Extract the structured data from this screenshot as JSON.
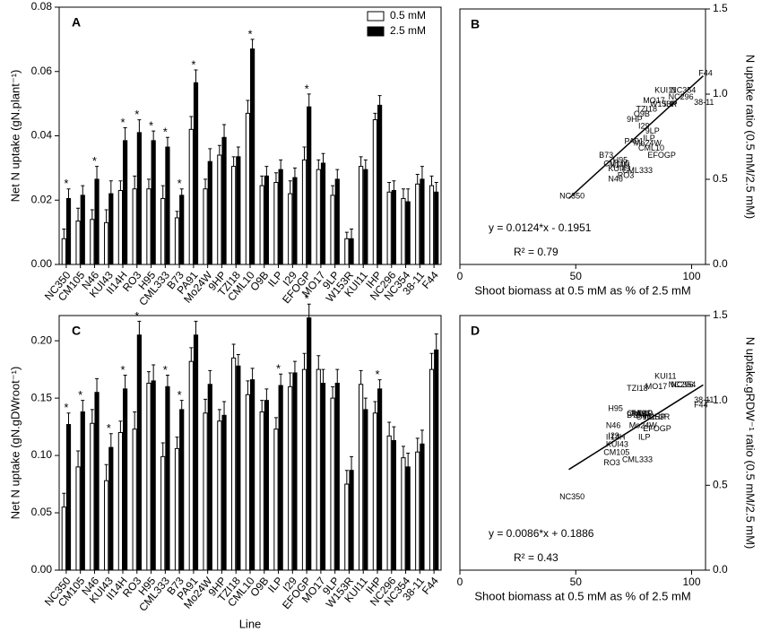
{
  "chart_data": [
    {
      "type": "bar",
      "panel_label": "A",
      "ylabel": "Net N uptake (gN.plant⁻¹)",
      "categories": [
        "NC350",
        "CM105",
        "N46",
        "KUI43",
        "II14H",
        "RO3",
        "H95",
        "CML333",
        "B73",
        "PA91",
        "Mo24W",
        "9HP",
        "TZI18",
        "CML10",
        "O9B",
        "ILP",
        "I29",
        "EFOGP",
        "MO17",
        "9LP",
        "W153R",
        "KUI11",
        "IHP",
        "NC296",
        "NC354",
        "38-11",
        "F44"
      ],
      "series": [
        {
          "name": "0.5 mM",
          "color": "#ffffff",
          "values": [
            0.008,
            0.0135,
            0.014,
            0.013,
            0.023,
            0.0235,
            0.0235,
            0.0205,
            0.0145,
            0.042,
            0.0235,
            0.034,
            0.0305,
            0.047,
            0.0245,
            0.0255,
            0.022,
            0.0325,
            0.0295,
            0.0215,
            0.008,
            0.0305,
            0.045,
            0.0225,
            0.0205,
            0.025,
            0.0245
          ],
          "errors": [
            0.003,
            0.004,
            0.003,
            0.004,
            0.003,
            0.004,
            0.003,
            0.004,
            0.002,
            0.004,
            0.003,
            0.003,
            0.003,
            0.004,
            0.003,
            0.003,
            0.004,
            0.004,
            0.003,
            0.003,
            0.002,
            0.003,
            0.002,
            0.003,
            0.003,
            0.003,
            0.003
          ]
        },
        {
          "name": "2.5 mM",
          "color": "#000000",
          "values": [
            0.0205,
            0.0215,
            0.0265,
            0.022,
            0.0385,
            0.041,
            0.0385,
            0.0365,
            0.0215,
            0.0565,
            0.032,
            0.0395,
            0.0335,
            0.067,
            0.0275,
            0.0295,
            0.027,
            0.049,
            0.0315,
            0.0265,
            0.008,
            0.0295,
            0.0495,
            0.023,
            0.0195,
            0.0265,
            0.0225
          ],
          "errors": [
            0.003,
            0.003,
            0.004,
            0.004,
            0.004,
            0.004,
            0.003,
            0.003,
            0.002,
            0.004,
            0.004,
            0.004,
            0.003,
            0.003,
            0.003,
            0.003,
            0.003,
            0.004,
            0.003,
            0.003,
            0.003,
            0.003,
            0.003,
            0.003,
            0.004,
            0.004,
            0.003
          ]
        }
      ],
      "significance": [
        "*",
        null,
        "*",
        null,
        "*",
        "*",
        "*",
        "*",
        "*",
        "*",
        null,
        null,
        null,
        "*",
        null,
        null,
        null,
        "*",
        null,
        null,
        null,
        null,
        null,
        null,
        null,
        null,
        null
      ],
      "ylim": [
        0,
        0.08
      ],
      "yticks": [
        {
          "value": 0,
          "label": "0.00"
        },
        {
          "value": 0.02,
          "label": "0.02"
        },
        {
          "value": 0.04,
          "label": "0.04"
        },
        {
          "value": 0.06,
          "label": "0.06"
        },
        {
          "value": 0.08,
          "label": "0.08"
        }
      ],
      "legend": "upper right"
    },
    {
      "type": "scatter",
      "panel_label": "B",
      "ylabel": "N uptake ratio (0.5 mM/2.5 mM)",
      "xlabel": "Shoot biomass at 0.5 mM as % of 2.5 mM",
      "labels": [
        "NC350",
        "CM105",
        "N46",
        "KUI43",
        "II14H",
        "RO3",
        "H95",
        "CML333",
        "B73",
        "PA91",
        "Mo24W",
        "9HP",
        "TZI18",
        "CML10",
        "O9B",
        "ILP",
        "I29",
        "EFOGP",
        "MO17",
        "9LP",
        "W153R",
        "KUI11",
        "IHP",
        "NC296",
        "NC354",
        "38-11",
        "F44"
      ],
      "x": [
        43,
        62,
        64,
        64,
        65,
        68,
        66,
        70,
        60,
        71,
        75,
        72,
        76,
        77,
        75,
        79,
        77,
        81,
        79,
        80,
        82,
        84,
        88,
        90,
        91,
        101,
        103
      ],
      "y": [
        0.4,
        0.59,
        0.5,
        0.56,
        0.58,
        0.52,
        0.61,
        0.55,
        0.64,
        0.72,
        0.71,
        0.85,
        0.91,
        0.68,
        0.88,
        0.74,
        0.81,
        0.64,
        0.96,
        0.78,
        0.94,
        1.02,
        0.94,
        0.98,
        1.02,
        0.95,
        1.12
      ],
      "fit": {
        "slope": 0.0124,
        "intercept": -0.1951,
        "xrange": [
          47,
          105
        ]
      },
      "equation": "y = 0.0124*x - 0.1951",
      "r2": "R² = 0.79",
      "xlim": [
        0,
        106
      ],
      "xticks": [
        0,
        50,
        100
      ],
      "ylim": [
        0,
        1.5
      ],
      "yticks": [
        {
          "value": 0,
          "label": "0.0"
        },
        0.5,
        {
          "value": 1,
          "label": "1.0"
        },
        1.5
      ]
    },
    {
      "type": "bar",
      "panel_label": "C",
      "ylabel": "Net N uptake (gN.gDWroot⁻¹)",
      "xlabel": "Line",
      "categories": [
        "NC350",
        "CM105",
        "N46",
        "KUI43",
        "II14H",
        "RO3",
        "H95",
        "CML333",
        "B73",
        "PA91",
        "Mo24W",
        "9HP",
        "TZI18",
        "CML10",
        "O9B",
        "ILP",
        "I29",
        "EFOGP",
        "MO17",
        "9LP",
        "W153R",
        "KUI11",
        "IHP",
        "NC296",
        "NC354",
        "38-11",
        "F44"
      ],
      "series": [
        {
          "name": "0.5 mM",
          "color": "#ffffff",
          "values": [
            0.055,
            0.09,
            0.128,
            0.078,
            0.12,
            0.123,
            0.163,
            0.099,
            0.106,
            0.182,
            0.137,
            0.13,
            0.185,
            0.153,
            0.138,
            0.123,
            0.16,
            0.175,
            0.175,
            0.15,
            0.075,
            0.162,
            0.137,
            0.117,
            0.098,
            0.103,
            0.175
          ],
          "errors": [
            0.012,
            0.014,
            0.012,
            0.014,
            0.01,
            0.015,
            0.01,
            0.012,
            0.01,
            0.012,
            0.012,
            0.01,
            0.012,
            0.012,
            0.01,
            0.01,
            0.012,
            0.014,
            0.012,
            0.01,
            0.012,
            0.012,
            0.01,
            0.012,
            0.01,
            0.012,
            0.014
          ]
        },
        {
          "name": "2.5 mM",
          "color": "#000000",
          "values": [
            0.127,
            0.138,
            0.155,
            0.107,
            0.158,
            0.205,
            0.165,
            0.16,
            0.14,
            0.205,
            0.162,
            0.135,
            0.178,
            0.166,
            0.148,
            0.161,
            0.172,
            0.22,
            0.163,
            0.163,
            0.087,
            0.14,
            0.158,
            0.113,
            0.09,
            0.11,
            0.192
          ],
          "errors": [
            0.01,
            0.01,
            0.012,
            0.012,
            0.012,
            0.012,
            0.014,
            0.01,
            0.008,
            0.012,
            0.012,
            0.012,
            0.01,
            0.01,
            0.01,
            0.01,
            0.01,
            0.012,
            0.012,
            0.012,
            0.012,
            0.01,
            0.008,
            0.012,
            0.012,
            0.012,
            0.014
          ]
        }
      ],
      "significance": [
        "*",
        "*",
        null,
        "*",
        "*",
        "*",
        null,
        "*",
        "*",
        null,
        null,
        null,
        null,
        null,
        null,
        "*",
        null,
        "*",
        null,
        null,
        null,
        null,
        "*",
        null,
        null,
        null,
        null
      ],
      "ylim": [
        0,
        0.222
      ],
      "yticks": [
        {
          "value": 0,
          "label": "0.00"
        },
        {
          "value": 0.05,
          "label": "0.05"
        },
        {
          "value": 0.1,
          "label": "0.10"
        },
        {
          "value": 0.15,
          "label": "0.15"
        },
        {
          "value": 0.2,
          "label": "0.20"
        }
      ]
    },
    {
      "type": "scatter",
      "panel_label": "D",
      "ylabel": "N uptake.gRDW⁻¹ ratio (0.5 mM/2.5 mM)",
      "xlabel": "Shoot biomass at 0.5 mM as % of 2.5 mM",
      "labels": [
        "NC350",
        "CM105",
        "N46",
        "KUI43",
        "II14H",
        "RO3",
        "H95",
        "CML333",
        "B73",
        "PA91",
        "Mo24W",
        "9HP",
        "TZI18",
        "CML10",
        "O9B",
        "ILP",
        "I29",
        "EFOGP",
        "MO17",
        "9LP",
        "W153R",
        "KUI11",
        "IHP",
        "NC296",
        "NC354",
        "38-11",
        "F44"
      ],
      "x": [
        43,
        62,
        63,
        63,
        63,
        62,
        64,
        70,
        72,
        74,
        73,
        75,
        72,
        72,
        76,
        77,
        64,
        79,
        80,
        77,
        79,
        84,
        83,
        90,
        91,
        101,
        101
      ],
      "y": [
        0.43,
        0.69,
        0.85,
        0.74,
        0.78,
        0.63,
        0.95,
        0.65,
        0.91,
        0.92,
        0.85,
        0.91,
        1.07,
        0.92,
        0.9,
        0.78,
        0.79,
        0.83,
        1.08,
        0.92,
        0.9,
        1.14,
        0.9,
        1.09,
        1.09,
        1.0,
        0.97
      ],
      "fit": {
        "slope": 0.0086,
        "intercept": 0.1886,
        "xrange": [
          47,
          105
        ]
      },
      "equation": "y = 0.0086*x + 0.1886",
      "r2": "R² = 0.43",
      "xlim": [
        0,
        106
      ],
      "xticks": [
        0,
        50,
        100
      ],
      "ylim": [
        0,
        1.5
      ],
      "yticks": [
        {
          "value": 0,
          "label": "0.0"
        },
        0.5,
        {
          "value": 1,
          "label": "1.0"
        },
        1.5
      ]
    }
  ]
}
